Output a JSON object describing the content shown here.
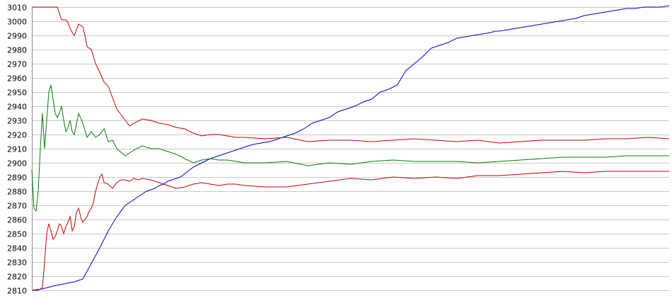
{
  "chart_data": {
    "type": "line",
    "title": "",
    "xlabel": "",
    "ylabel": "",
    "ylim": [
      2810,
      3010
    ],
    "yticks": [
      3010,
      3000,
      2990,
      2980,
      2970,
      2960,
      2950,
      2940,
      2930,
      2920,
      2910,
      2900,
      2890,
      2880,
      2870,
      2860,
      2850,
      2840,
      2830,
      2820,
      2810
    ],
    "xlim": [
      0,
      300
    ],
    "grid": true,
    "legend": "none",
    "series": [
      {
        "color": "#0000c8",
        "x": [
          0,
          5,
          10,
          20,
          24,
          28,
          32,
          34,
          36,
          40,
          44,
          48,
          52,
          54,
          56,
          58,
          60,
          62,
          64,
          70,
          76,
          80,
          84,
          88,
          92,
          96,
          100,
          104,
          108,
          112,
          116,
          120,
          124,
          128,
          132,
          136,
          140,
          144,
          148,
          152,
          156,
          160,
          164,
          168,
          172,
          176,
          180,
          184,
          188,
          192,
          196,
          200,
          204,
          208,
          212,
          216,
          218,
          220,
          224,
          228,
          232,
          236,
          240,
          244,
          248,
          252,
          256,
          260,
          264,
          268,
          272,
          276,
          280,
          284,
          288,
          292,
          296,
          300
        ],
        "y": [
          2810,
          2811,
          2813,
          2816,
          2818,
          2829,
          2840,
          2846,
          2852,
          2862,
          2870,
          2874,
          2878,
          2880,
          2881,
          2882,
          2884,
          2885,
          2887,
          2890,
          2897,
          2900,
          2903,
          2905,
          2907,
          2909,
          2911,
          2913,
          2914,
          2915,
          2917,
          2919,
          2921,
          2924,
          2928,
          2930,
          2932,
          2936,
          2938,
          2940,
          2943,
          2945,
          2950,
          2952,
          2955,
          2965,
          2970,
          2975,
          2981,
          2983,
          2985,
          2988,
          2989,
          2990,
          2991,
          2992,
          2993,
          2993,
          2994,
          2995,
          2996,
          2997,
          2998,
          2999,
          3000,
          3001,
          3002,
          3004,
          3005,
          3006,
          3007,
          3008,
          3009,
          3009,
          3010,
          3010,
          3010,
          3011
        ]
      },
      {
        "color": "#c80000",
        "x": [
          0,
          6,
          8,
          12,
          14,
          16,
          17,
          18,
          19,
          20,
          22,
          24,
          25,
          26,
          28,
          30,
          32,
          34,
          36,
          38,
          40,
          44,
          46,
          48,
          52,
          56,
          60,
          64,
          68,
          72,
          76,
          80,
          84,
          88,
          92,
          96,
          100,
          110,
          120,
          130,
          140,
          150,
          160,
          170,
          180,
          190,
          200,
          210,
          220,
          230,
          240,
          250,
          260,
          270,
          280,
          290,
          300
        ],
        "y": [
          3010,
          3010,
          3010,
          3010,
          3001,
          3001,
          2999,
          2995,
          2992,
          2990,
          2998,
          2996,
          2990,
          2982,
          2980,
          2970,
          2964,
          2957,
          2954,
          2946,
          2938,
          2930,
          2926,
          2928,
          2931,
          2930,
          2928,
          2927,
          2925,
          2924,
          2921,
          2919,
          2920,
          2920,
          2919,
          2918,
          2918,
          2917,
          2918,
          2915,
          2916,
          2916,
          2915,
          2916,
          2917,
          2916,
          2915,
          2916,
          2914,
          2915,
          2916,
          2916,
          2916,
          2917,
          2917,
          2918,
          2917
        ]
      },
      {
        "color": "#008000",
        "x": [
          0,
          1,
          2,
          3,
          4,
          5,
          6,
          7,
          8,
          9,
          10,
          11,
          12,
          13,
          14,
          15,
          16,
          17,
          18,
          19,
          20,
          22,
          24,
          26,
          28,
          30,
          32,
          34,
          36,
          38,
          40,
          44,
          48,
          52,
          56,
          60,
          64,
          68,
          72,
          76,
          80,
          84,
          88,
          92,
          96,
          100,
          110,
          120,
          130,
          140,
          150,
          160,
          170,
          180,
          190,
          200,
          210,
          220,
          230,
          240,
          250,
          260,
          270,
          280,
          290,
          300
        ],
        "y": [
          2895,
          2868,
          2866,
          2880,
          2910,
          2935,
          2910,
          2930,
          2950,
          2955,
          2945,
          2935,
          2932,
          2935,
          2940,
          2930,
          2922,
          2925,
          2930,
          2922,
          2920,
          2935,
          2928,
          2918,
          2922,
          2918,
          2920,
          2924,
          2915,
          2916,
          2910,
          2905,
          2909,
          2912,
          2910,
          2910,
          2908,
          2906,
          2903,
          2900,
          2902,
          2903,
          2902,
          2902,
          2901,
          2900,
          2900,
          2901,
          2898,
          2900,
          2899,
          2901,
          2902,
          2901,
          2901,
          2901,
          2900,
          2901,
          2902,
          2903,
          2904,
          2904,
          2904,
          2905,
          2905,
          2905
        ]
      },
      {
        "color": "#c80000",
        "x": [
          0,
          3,
          5,
          6,
          7,
          8,
          9,
          10,
          11,
          12,
          13,
          14,
          15,
          16,
          17,
          18,
          19,
          20,
          21,
          22,
          23,
          24,
          25,
          26,
          27,
          28,
          29,
          30,
          31,
          32,
          33,
          34,
          36,
          38,
          40,
          42,
          44,
          46,
          48,
          50,
          52,
          56,
          60,
          64,
          68,
          72,
          76,
          80,
          84,
          88,
          92,
          96,
          100,
          110,
          120,
          130,
          140,
          150,
          160,
          170,
          180,
          190,
          200,
          210,
          220,
          230,
          240,
          250,
          260,
          270,
          280,
          290,
          300
        ],
        "y": [
          2810,
          2810,
          2812,
          2830,
          2850,
          2857,
          2852,
          2846,
          2848,
          2852,
          2857,
          2855,
          2850,
          2855,
          2858,
          2862,
          2852,
          2855,
          2865,
          2868,
          2862,
          2858,
          2860,
          2862,
          2866,
          2868,
          2872,
          2880,
          2885,
          2890,
          2892,
          2886,
          2885,
          2882,
          2886,
          2888,
          2888,
          2887,
          2889,
          2888,
          2889,
          2888,
          2886,
          2884,
          2882,
          2883,
          2885,
          2886,
          2885,
          2884,
          2885,
          2885,
          2884,
          2883,
          2883,
          2885,
          2887,
          2889,
          2888,
          2890,
          2889,
          2890,
          2889,
          2891,
          2891,
          2892,
          2893,
          2894,
          2893,
          2894,
          2894,
          2894,
          2894
        ]
      }
    ]
  }
}
